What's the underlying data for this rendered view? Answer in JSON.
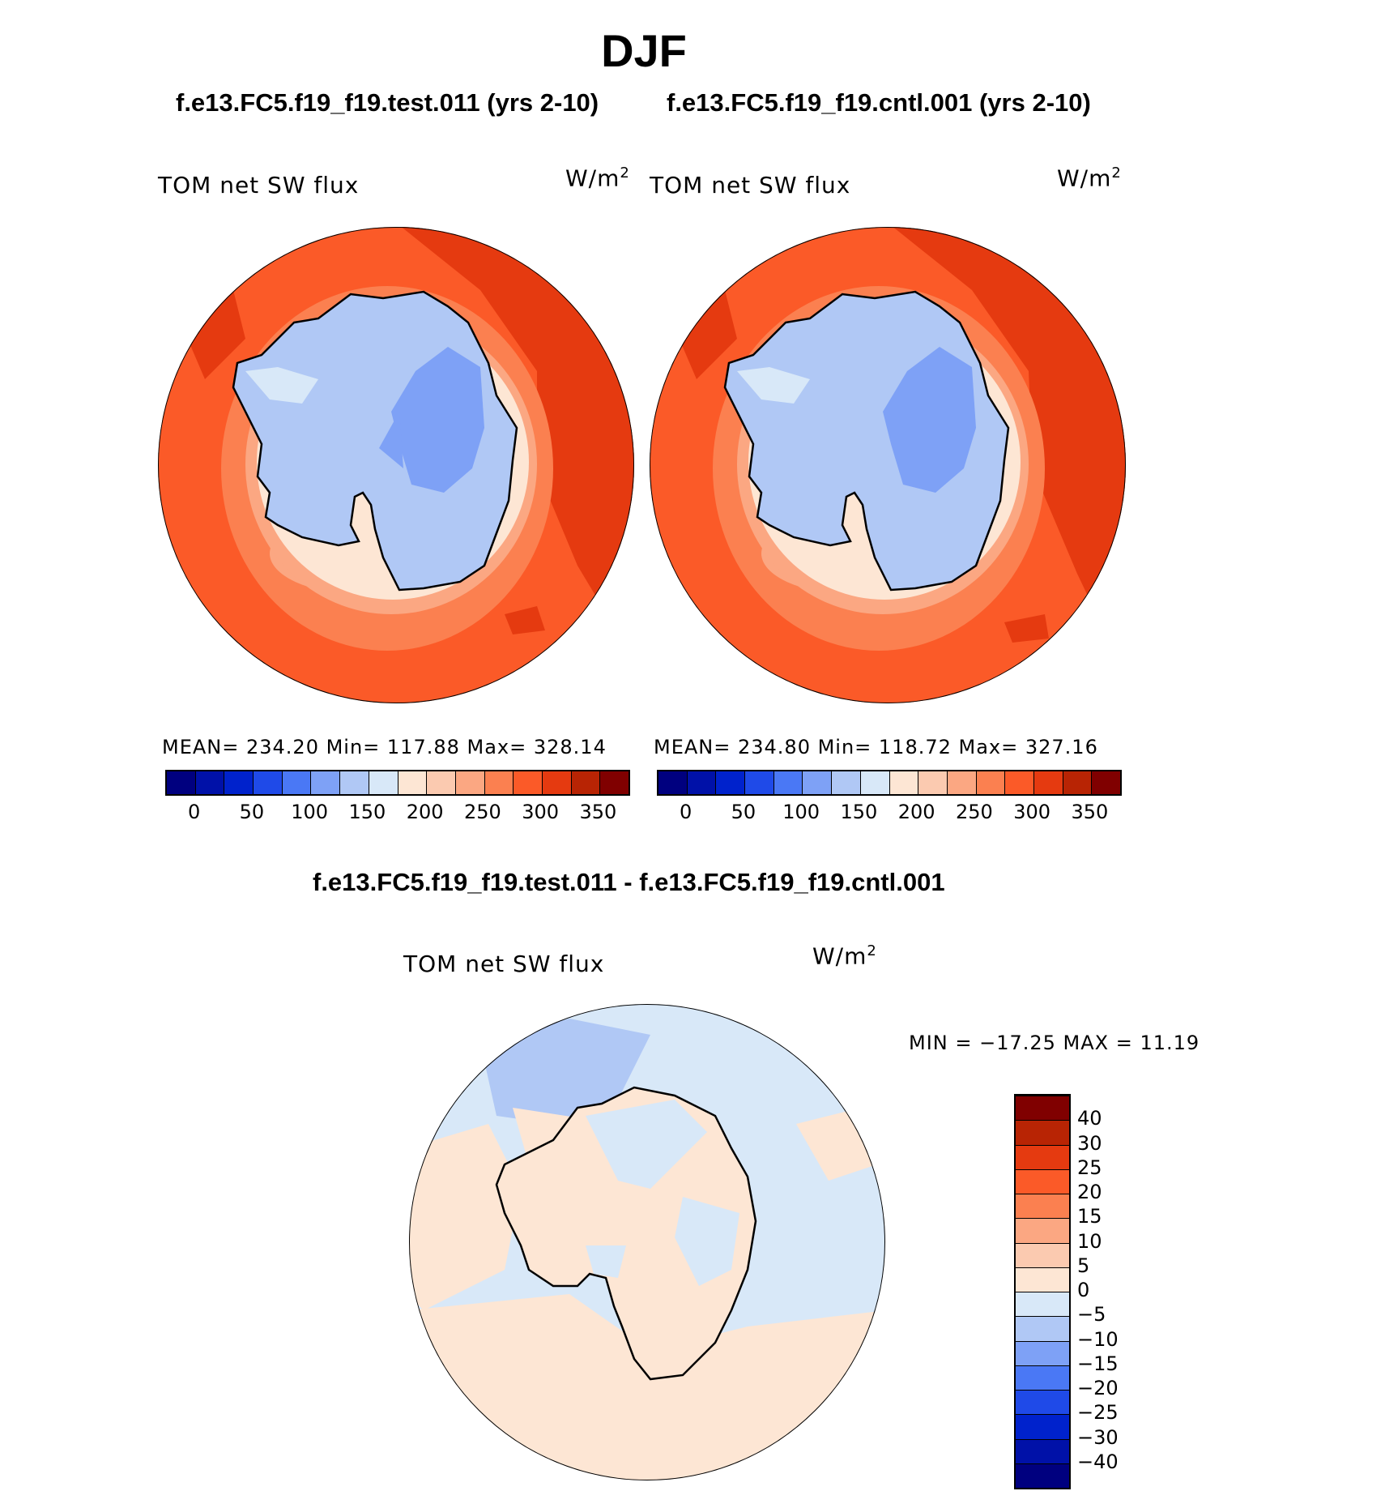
{
  "title": "DJF",
  "panels": [
    {
      "run_label": "f.e13.FC5.f19_f19.test.011 (yrs 2-10)",
      "variable": "TOM net SW flux",
      "units": "W/m",
      "units_exp": "2",
      "stats": "MEAN= 234.20   Min= 117.88   Max= 328.14"
    },
    {
      "run_label": "f.e13.FC5.f19_f19.cntl.001 (yrs 2-10)",
      "variable": "TOM net SW flux",
      "units": "W/m",
      "units_exp": "2",
      "stats": "MEAN= 234.80   Min= 118.72   Max= 327.16"
    }
  ],
  "diff": {
    "label": "f.e13.FC5.f19_f19.test.011 - f.e13.FC5.f19_f19.cntl.001",
    "variable": "TOM net SW flux",
    "units": "W/m",
    "units_exp": "2",
    "stats": "MIN = −17.25 MAX =   11.19"
  },
  "colorbar_abs": {
    "colors": [
      "#00007f",
      "#0011a8",
      "#0022cc",
      "#1f4ae8",
      "#4a78f5",
      "#7ea1f6",
      "#b0c8f5",
      "#d8e8f8",
      "#fde6d4",
      "#fbcab0",
      "#fba782",
      "#fb8050",
      "#fb5a28",
      "#e53a10",
      "#b82404",
      "#800000"
    ],
    "tick_labels": [
      "0",
      "50",
      "100",
      "150",
      "200",
      "250",
      "300",
      "350"
    ]
  },
  "colorbar_diff": {
    "colors": [
      "#00007f",
      "#0011a8",
      "#0022cc",
      "#1f4ae8",
      "#4a78f5",
      "#7ea1f6",
      "#b0c8f5",
      "#d8e8f8",
      "#fde6d4",
      "#fbcab0",
      "#fba782",
      "#fb8050",
      "#fb5a28",
      "#e53a10",
      "#b82404",
      "#800000"
    ],
    "tick_labels": [
      "−40",
      "−30",
      "−25",
      "−20",
      "−15",
      "−10",
      "−5",
      "0",
      "5",
      "10",
      "15",
      "20",
      "25",
      "30",
      "40"
    ]
  },
  "map_colors": {
    "ocean": "#fb5a28",
    "ocean_warm": "#e53a10",
    "coast_1": "#fb8050",
    "coast_2": "#fba782",
    "coast_3": "#fde6d4",
    "ice": "#b0c8f5",
    "ice_high": "#7ea1f6",
    "diff_neg": "#d8e8f8",
    "diff_neg2": "#b0c8f5",
    "diff_pos": "#fde6d4"
  }
}
